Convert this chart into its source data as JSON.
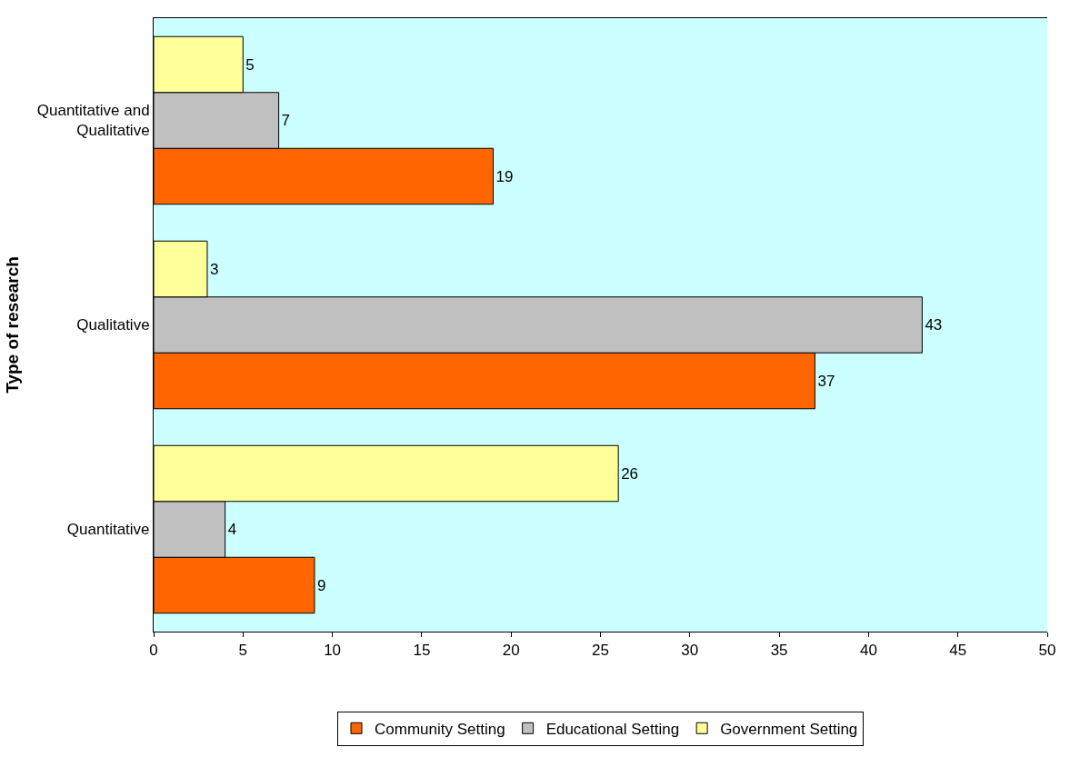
{
  "chart_data": {
    "type": "bar",
    "orientation": "horizontal",
    "ylabel": "Type of research",
    "categories": [
      "Quantitative and\nQualitative",
      "Qualitative",
      "Quantitative"
    ],
    "series": [
      {
        "name": "Community Setting",
        "color": "#ff6600",
        "values": [
          19,
          37,
          9
        ]
      },
      {
        "name": "Educational Setting",
        "color": "#c0c0c0",
        "values": [
          7,
          43,
          4
        ]
      },
      {
        "name": "Government Setting",
        "color": "#ffff99",
        "values": [
          5,
          3,
          26
        ]
      }
    ],
    "xlim": [
      0,
      50
    ],
    "xticks": [
      0,
      5,
      10,
      15,
      20,
      25,
      30,
      35,
      40,
      45,
      50
    ],
    "grid": false,
    "legend": "bottom",
    "data_labels": true
  }
}
